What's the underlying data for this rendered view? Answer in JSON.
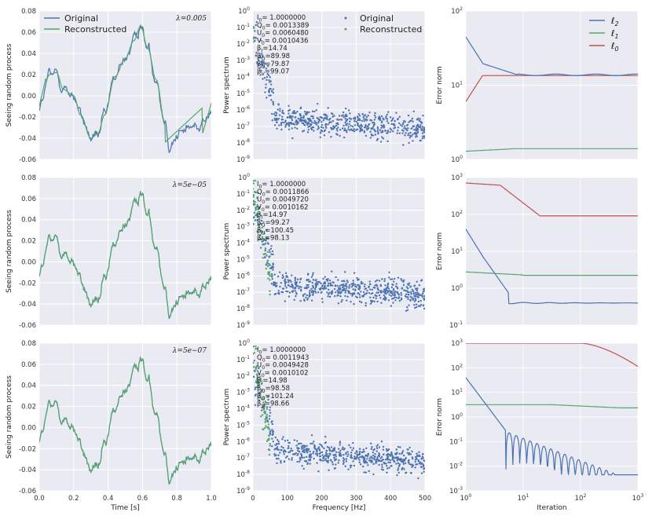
{
  "colors": {
    "blue": "#4c72b0",
    "green": "#55a868",
    "red": "#c44e52",
    "panel_bg": "#eaeaf2",
    "grid": "#ffffff"
  },
  "chart_data": [
    {
      "type": "line",
      "panel": "time-1",
      "ylabel": "Seeing random process",
      "xlabel": "",
      "xlim": [
        0,
        1
      ],
      "ylim": [
        -0.06,
        0.08
      ],
      "xticks": [
        "0.0",
        "0.2",
        "0.4",
        "0.6",
        "0.8",
        "1.0"
      ],
      "show_xticks": false,
      "yticks": [
        "-0.06",
        "-0.04",
        "-0.02",
        "0.00",
        "0.02",
        "0.04",
        "0.06",
        "0.08"
      ],
      "annotation": "λ=0.005",
      "legend": [
        "Original",
        "Reconstructed"
      ],
      "smooth": true
    },
    {
      "type": "scatter",
      "panel": "spec-1",
      "ylabel": "Power spectrum",
      "xlabel": "",
      "xlim": [
        0,
        500
      ],
      "ylog": [
        -9,
        0
      ],
      "xticks": [
        "0",
        "100",
        "200",
        "300",
        "400",
        "500"
      ],
      "show_xticks": false,
      "yticks": [
        "10^-9",
        "10^-8",
        "10^-7",
        "10^-6",
        "10^-5",
        "10^-4",
        "10^-3",
        "10^-2",
        "10^-1",
        "10^0"
      ],
      "legend": [
        "Original",
        "Reconstructed"
      ],
      "stats": [
        "I_0= 1.0000000",
        "Q_0= 0.0013389",
        "U_0= 0.0060480",
        "V_0= 0.0010436",
        "β_I=14.74",
        "β_Q=89.98",
        "β_U=79.87",
        "β_V=99.07"
      ]
    },
    {
      "type": "line",
      "panel": "err-1",
      "ylabel": "Error norm",
      "xlabel": "",
      "xlog": [
        0,
        3
      ],
      "ylog": [
        0,
        2
      ],
      "xticks": [
        "10^0",
        "10^1",
        "10^2",
        "10^3"
      ],
      "show_xticks": false,
      "yticks": [
        "10^0",
        "10^1",
        "10^2"
      ],
      "legend": [
        "ℓ2",
        "ℓ1",
        "ℓ0"
      ],
      "style": 1
    },
    {
      "type": "line",
      "panel": "time-2",
      "ylabel": "Seeing random process",
      "xlabel": "",
      "xlim": [
        0,
        1
      ],
      "ylim": [
        -0.06,
        0.08
      ],
      "xticks": [
        "0.0",
        "0.2",
        "0.4",
        "0.6",
        "0.8",
        "1.0"
      ],
      "show_xticks": false,
      "yticks": [
        "-0.06",
        "-0.04",
        "-0.02",
        "0.00",
        "0.02",
        "0.04",
        "0.06",
        "0.08"
      ],
      "annotation": "λ=5e−05",
      "smooth": false
    },
    {
      "type": "scatter",
      "panel": "spec-2",
      "ylabel": "Power spectrum",
      "xlabel": "",
      "xlim": [
        0,
        500
      ],
      "ylog": [
        -9,
        0
      ],
      "xticks": [
        "0",
        "100",
        "200",
        "300",
        "400",
        "500"
      ],
      "show_xticks": false,
      "yticks": [
        "10^-9",
        "10^-8",
        "10^-7",
        "10^-6",
        "10^-5",
        "10^-4",
        "10^-3",
        "10^-2",
        "10^-1",
        "10^0"
      ],
      "stats": [
        "I_0= 1.0000000",
        "Q_0= 0.0011866",
        "U_0= 0.0049720",
        "V_0= 0.0010162",
        "β_I=14.97",
        "β_Q=99.27",
        "β_U=100.45",
        "β_V=98.13"
      ]
    },
    {
      "type": "line",
      "panel": "err-2",
      "ylabel": "Error norm",
      "xlabel": "",
      "xlog": [
        0,
        3
      ],
      "ylog": [
        -1,
        3
      ],
      "xticks": [
        "10^0",
        "10^1",
        "10^2",
        "10^3"
      ],
      "show_xticks": false,
      "yticks": [
        "10^-1",
        "10^0",
        "10^1",
        "10^2",
        "10^3"
      ],
      "style": 2
    },
    {
      "type": "line",
      "panel": "time-3",
      "ylabel": "Seeing random process",
      "xlabel": "Time [s]",
      "xlim": [
        0,
        1
      ],
      "ylim": [
        -0.06,
        0.08
      ],
      "xticks": [
        "0.0",
        "0.2",
        "0.4",
        "0.6",
        "0.8",
        "1.0"
      ],
      "show_xticks": true,
      "yticks": [
        "-0.06",
        "-0.04",
        "-0.02",
        "0.00",
        "0.02",
        "0.04",
        "0.06",
        "0.08"
      ],
      "annotation": "λ=5e−07",
      "smooth": false
    },
    {
      "type": "scatter",
      "panel": "spec-3",
      "ylabel": "Power spectrum",
      "xlabel": "Frequency [Hz]",
      "xlim": [
        0,
        500
      ],
      "ylog": [
        -9,
        0
      ],
      "xticks": [
        "0",
        "100",
        "200",
        "300",
        "400",
        "500"
      ],
      "show_xticks": true,
      "yticks": [
        "10^-9",
        "10^-8",
        "10^-7",
        "10^-6",
        "10^-5",
        "10^-4",
        "10^-3",
        "10^-2",
        "10^-1",
        "10^0"
      ],
      "stats": [
        "I_0= 1.0000000",
        "Q_0= 0.0011943",
        "U_0= 0.0049428",
        "V_0= 0.0010102",
        "β_I=14.98",
        "β_Q=98.58",
        "β_U=101.24",
        "β_V=98.66"
      ]
    },
    {
      "type": "line",
      "panel": "err-3",
      "ylabel": "Error norm",
      "xlabel": "Iteration",
      "xlog": [
        0,
        3
      ],
      "ylog": [
        -3,
        3
      ],
      "xticks": [
        "10^0",
        "10^1",
        "10^2",
        "10^3"
      ],
      "show_xticks": true,
      "yticks": [
        "10^-3",
        "10^-2",
        "10^-1",
        "10^0",
        "10^1",
        "10^2",
        "10^3"
      ],
      "style": 3
    }
  ]
}
